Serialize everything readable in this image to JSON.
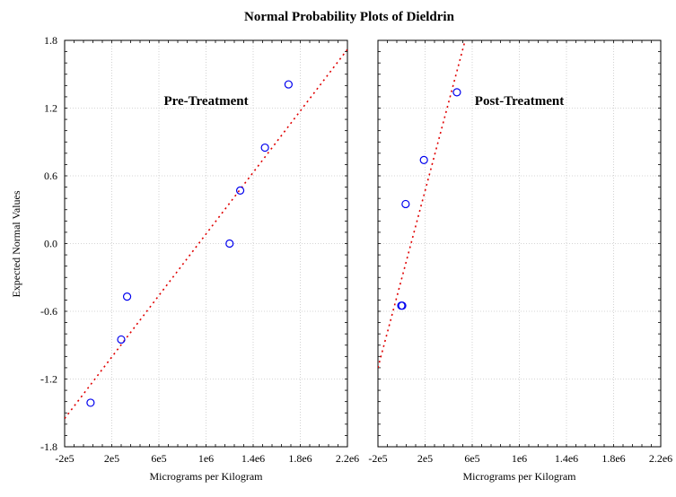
{
  "chart_data": {
    "type": "scatter",
    "title": "Normal Probability Plots of Dieldrin",
    "ylabel": "Expected Normal Values",
    "ylim": [
      -1.8,
      1.8
    ],
    "yticks": [
      "-1.8",
      "-1.2",
      "-0.6",
      "0.0",
      "0.6",
      "1.2",
      "1.8"
    ],
    "xticks": [
      "-2e5",
      "2e5",
      "6e5",
      "1e6",
      "1.4e6",
      "1.8e6",
      "2.2e6"
    ],
    "grid": true,
    "colors": {
      "points": "#0000ee",
      "fit_line": "#e00000"
    },
    "panels": [
      {
        "label": "Pre-Treatment",
        "xlabel": "Micrograms per Kilogram",
        "xlim": [
          -200000,
          2200000
        ],
        "points": [
          {
            "x": 20000,
            "y": -1.41
          },
          {
            "x": 280000,
            "y": -0.85
          },
          {
            "x": 330000,
            "y": -0.47
          },
          {
            "x": 1200000,
            "y": 0.0
          },
          {
            "x": 1290000,
            "y": 0.47
          },
          {
            "x": 1500000,
            "y": 0.85
          },
          {
            "x": 1700000,
            "y": 1.41
          }
        ],
        "fit_line": [
          {
            "x": -200000,
            "y": -1.55
          },
          {
            "x": 2200000,
            "y": 1.72
          }
        ]
      },
      {
        "label": "Post-Treatment",
        "xlabel": "Micrograms per Kilogram",
        "xlim": [
          -200000,
          2200000
        ],
        "points": [
          {
            "x": -2000,
            "y": -0.55
          },
          {
            "x": 6000,
            "y": -0.55
          },
          {
            "x": 35000,
            "y": 0.35
          },
          {
            "x": 190000,
            "y": 0.74
          },
          {
            "x": 470000,
            "y": 1.34
          }
        ],
        "fit_line": [
          {
            "x": -200000,
            "y": -1.1
          },
          {
            "x": 540000,
            "y": 1.8
          }
        ]
      }
    ]
  }
}
